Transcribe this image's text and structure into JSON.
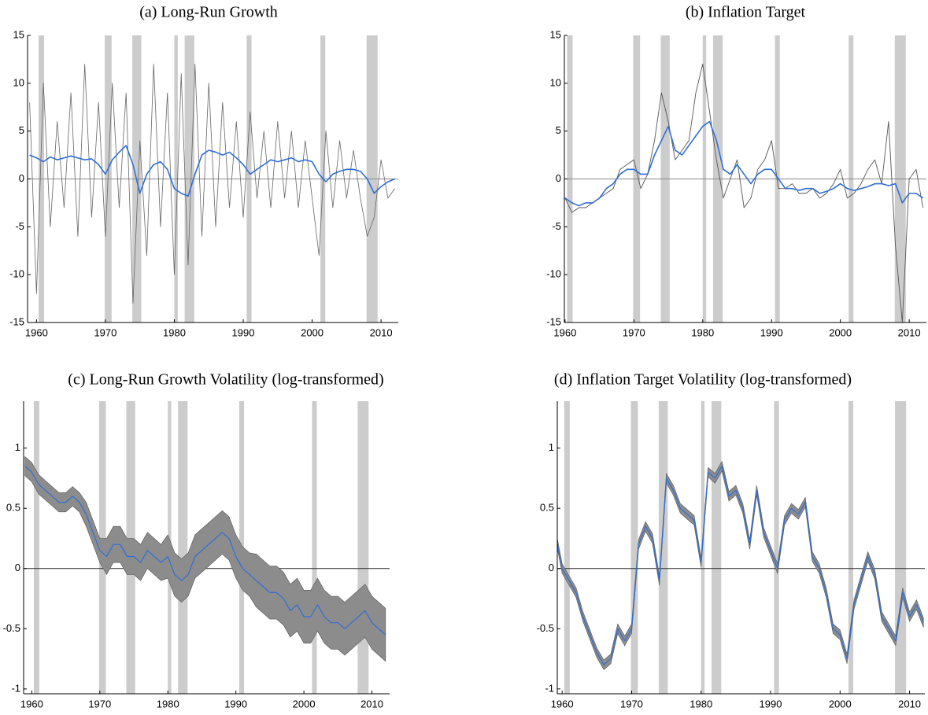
{
  "chart_data": [
    {
      "type": "line",
      "title": "(a) Long-Run Growth",
      "x": [
        1959,
        1960,
        1961,
        1962,
        1963,
        1964,
        1965,
        1966,
        1967,
        1968,
        1969,
        1970,
        1971,
        1972,
        1973,
        1974,
        1975,
        1976,
        1977,
        1978,
        1979,
        1980,
        1981,
        1982,
        1983,
        1984,
        1985,
        1986,
        1987,
        1988,
        1989,
        1990,
        1991,
        1992,
        1993,
        1994,
        1995,
        1996,
        1997,
        1998,
        1999,
        2000,
        2001,
        2002,
        2003,
        2004,
        2005,
        2006,
        2007,
        2008,
        2009,
        2010,
        2011,
        2012
      ],
      "xlim": [
        1958.7,
        2012.5
      ],
      "ylim": [
        -15,
        15
      ],
      "xticks": [
        1960,
        1970,
        1980,
        1990,
        2000,
        2010
      ],
      "yticks": [
        -15,
        -10,
        -5,
        0,
        5,
        10,
        15
      ],
      "recessions": [
        {
          "start": 1960.3,
          "end": 1961.1
        },
        {
          "start": 1969.9,
          "end": 1970.9
        },
        {
          "start": 1973.9,
          "end": 1975.2
        },
        {
          "start": 1980.0,
          "end": 1980.5
        },
        {
          "start": 1981.5,
          "end": 1982.9
        },
        {
          "start": 1990.5,
          "end": 1991.2
        },
        {
          "start": 2001.2,
          "end": 2001.9
        },
        {
          "start": 2007.9,
          "end": 2009.5
        }
      ],
      "recession_color": "#cccccc",
      "series": [
        {
          "color": "#666666",
          "width": 0.8,
          "values": [
            8,
            -12,
            10,
            -5,
            6,
            -3,
            9,
            -6,
            12,
            -4,
            8,
            -6,
            10,
            -3,
            9,
            -13,
            4,
            -8,
            12,
            -5,
            9,
            -10,
            11,
            -9,
            12,
            -6,
            10,
            -5,
            8,
            -3,
            6,
            -4,
            7,
            -2,
            5,
            -3,
            6,
            -2,
            5,
            -3,
            4,
            -2,
            -8,
            5,
            -3,
            4,
            -2,
            3,
            -2,
            -6,
            -4,
            2,
            -2,
            -1
          ]
        },
        {
          "color": "#2f6fd6",
          "width": 1.6,
          "values": [
            2.5,
            2.2,
            1.8,
            2.3,
            2,
            2.2,
            2.4,
            2.2,
            2,
            2.1,
            1.5,
            0.5,
            2.0,
            2.8,
            3.5,
            1.5,
            -1.5,
            0.5,
            1.5,
            1.8,
            1.0,
            -1.0,
            -1.5,
            -1.8,
            0.5,
            2.5,
            3.0,
            2.8,
            2.5,
            2.8,
            2.2,
            1.5,
            0.5,
            1.0,
            1.5,
            2.0,
            1.8,
            2.0,
            2.2,
            1.8,
            2.0,
            1.8,
            0.5,
            -0.3,
            0.5,
            0.8,
            1.0,
            1.0,
            0.8,
            0,
            -1.5,
            -0.8,
            -0.3,
            0
          ]
        }
      ]
    },
    {
      "type": "line",
      "title": "(b) Inflation Target",
      "x": [
        1959,
        1960,
        1961,
        1962,
        1963,
        1964,
        1965,
        1966,
        1967,
        1968,
        1969,
        1970,
        1971,
        1972,
        1973,
        1974,
        1975,
        1976,
        1977,
        1978,
        1979,
        1980,
        1981,
        1982,
        1983,
        1984,
        1985,
        1986,
        1987,
        1988,
        1989,
        1990,
        1991,
        1992,
        1993,
        1994,
        1995,
        1996,
        1997,
        1998,
        1999,
        2000,
        2001,
        2002,
        2003,
        2004,
        2005,
        2006,
        2007,
        2008,
        2009,
        2010,
        2011,
        2012
      ],
      "xlim": [
        1959.9,
        2012.5
      ],
      "ylim": [
        -15,
        15
      ],
      "xticks": [
        1960,
        1970,
        1980,
        1990,
        2000,
        2010
      ],
      "yticks": [
        -15,
        -10,
        -5,
        0,
        5,
        10,
        15
      ],
      "recessions": [
        {
          "start": 1960.3,
          "end": 1961.1
        },
        {
          "start": 1969.9,
          "end": 1970.9
        },
        {
          "start": 1973.9,
          "end": 1975.2
        },
        {
          "start": 1980.0,
          "end": 1980.5
        },
        {
          "start": 1981.5,
          "end": 1982.9
        },
        {
          "start": 1990.5,
          "end": 1991.2
        },
        {
          "start": 2001.2,
          "end": 2001.9
        },
        {
          "start": 2007.9,
          "end": 2009.5
        }
      ],
      "recession_color": "#cccccc",
      "series": [
        {
          "color": "#555555",
          "width": 0.9,
          "values": [
            -3.5,
            -2,
            -3.5,
            -3,
            -3,
            -2.5,
            -2,
            -1.5,
            -1,
            1,
            1.5,
            2,
            -1,
            0.5,
            4,
            9,
            6,
            2,
            3,
            4,
            9,
            12,
            7,
            2,
            -2,
            0,
            2,
            -3,
            -2,
            1,
            2,
            4,
            -1,
            -1,
            -0.5,
            -1.5,
            -1.5,
            -1,
            -2,
            -1.5,
            -0.5,
            1,
            -2,
            -1.5,
            -0.5,
            1,
            2,
            -0.5,
            6,
            -7,
            -15,
            0,
            1,
            -3
          ]
        },
        {
          "color": "#2f6fd6",
          "width": 1.6,
          "values": [
            -3,
            -2,
            -2.5,
            -2.8,
            -2.5,
            -2.5,
            -2,
            -1,
            -0.5,
            0.5,
            1.0,
            1.0,
            0.5,
            0.5,
            2.5,
            4,
            5.5,
            3,
            2.5,
            3.5,
            4.5,
            5.5,
            6,
            4,
            1,
            0.5,
            1.5,
            0.5,
            -0.5,
            0.5,
            1,
            1,
            0,
            -1,
            -1,
            -1.2,
            -1,
            -1,
            -1.5,
            -1.3,
            -1,
            -0.5,
            -1,
            -1.2,
            -1,
            -0.8,
            -0.5,
            -0.5,
            -0.7,
            -0.5,
            -2.5,
            -1.5,
            -1.5,
            -2
          ]
        }
      ]
    },
    {
      "type": "line",
      "title": "(c) Long-Run Growth Volatility (log-transformed)",
      "x": [
        1959,
        1960,
        1961,
        1962,
        1963,
        1964,
        1965,
        1966,
        1967,
        1968,
        1969,
        1970,
        1971,
        1972,
        1973,
        1974,
        1975,
        1976,
        1977,
        1978,
        1979,
        1980,
        1981,
        1982,
        1983,
        1984,
        1985,
        1986,
        1987,
        1988,
        1989,
        1990,
        1991,
        1992,
        1993,
        1994,
        1995,
        1996,
        1997,
        1998,
        1999,
        2000,
        2001,
        2002,
        2003,
        2004,
        2005,
        2006,
        2007,
        2008,
        2009,
        2010,
        2011,
        2012
      ],
      "xlim": [
        1958.8,
        2012.6
      ],
      "ylim": [
        -1.04,
        1.39
      ],
      "xticks": [
        1960,
        1970,
        1980,
        1990,
        2000,
        2010
      ],
      "yticks": [
        -1,
        -0.5,
        0,
        0.5,
        1
      ],
      "recessions": [
        {
          "start": 1960.3,
          "end": 1961.1
        },
        {
          "start": 1969.9,
          "end": 1970.9
        },
        {
          "start": 1973.9,
          "end": 1975.2
        },
        {
          "start": 1980.0,
          "end": 1980.5
        },
        {
          "start": 1981.5,
          "end": 1982.9
        },
        {
          "start": 1990.5,
          "end": 1991.2
        },
        {
          "start": 2001.2,
          "end": 2001.9
        },
        {
          "start": 2007.9,
          "end": 2009.5
        }
      ],
      "recession_color": "#cccccc",
      "band": {
        "color": "#8c8c8c",
        "upper": [
          0.93,
          0.88,
          0.78,
          0.73,
          0.68,
          0.63,
          0.63,
          0.68,
          0.63,
          0.55,
          0.4,
          0.25,
          0.25,
          0.35,
          0.35,
          0.25,
          0.25,
          0.2,
          0.3,
          0.25,
          0.2,
          0.28,
          0.13,
          0.08,
          0.13,
          0.28,
          0.33,
          0.38,
          0.43,
          0.48,
          0.43,
          0.28,
          0.18,
          0.13,
          0.12,
          0.07,
          0.02,
          0.02,
          -0.03,
          -0.13,
          -0.08,
          -0.18,
          -0.18,
          -0.08,
          -0.18,
          -0.23,
          -0.23,
          -0.28,
          -0.23,
          -0.18,
          -0.13,
          -0.23,
          -0.28,
          -0.33
        ],
        "lower": [
          0.77,
          0.72,
          0.62,
          0.57,
          0.52,
          0.47,
          0.47,
          0.52,
          0.47,
          0.35,
          0.2,
          0.05,
          -0.05,
          0.05,
          0.05,
          -0.05,
          -0.05,
          -0.1,
          0,
          -0.05,
          -0.1,
          -0.08,
          -0.23,
          -0.28,
          -0.23,
          -0.08,
          -0.03,
          0.02,
          0.07,
          0.12,
          0.07,
          -0.08,
          -0.18,
          -0.23,
          -0.32,
          -0.37,
          -0.42,
          -0.42,
          -0.47,
          -0.57,
          -0.52,
          -0.62,
          -0.62,
          -0.52,
          -0.62,
          -0.67,
          -0.67,
          -0.72,
          -0.67,
          -0.62,
          -0.57,
          -0.67,
          -0.72,
          -0.77
        ]
      },
      "series": [
        {
          "color": "#2f6fd6",
          "width": 1.2,
          "values": [
            0.85,
            0.8,
            0.7,
            0.65,
            0.6,
            0.55,
            0.55,
            0.6,
            0.55,
            0.45,
            0.3,
            0.15,
            0.1,
            0.2,
            0.2,
            0.1,
            0.1,
            0.05,
            0.15,
            0.1,
            0.05,
            0.1,
            -0.05,
            -0.1,
            -0.05,
            0.1,
            0.15,
            0.2,
            0.25,
            0.3,
            0.25,
            0.1,
            0.0,
            -0.05,
            -0.1,
            -0.15,
            -0.2,
            -0.2,
            -0.25,
            -0.35,
            -0.3,
            -0.4,
            -0.4,
            -0.3,
            -0.4,
            -0.45,
            -0.45,
            -0.5,
            -0.45,
            -0.4,
            -0.35,
            -0.45,
            -0.5,
            -0.55
          ]
        }
      ]
    },
    {
      "type": "line",
      "title": "(d) Inflation Target Volatility (log-transformed)",
      "x": [
        1959,
        1960,
        1961,
        1962,
        1963,
        1964,
        1965,
        1966,
        1967,
        1968,
        1969,
        1970,
        1971,
        1972,
        1973,
        1974,
        1975,
        1976,
        1977,
        1978,
        1979,
        1980,
        1981,
        1982,
        1983,
        1984,
        1985,
        1986,
        1987,
        1988,
        1989,
        1990,
        1991,
        1992,
        1993,
        1994,
        1995,
        1996,
        1997,
        1998,
        1999,
        2000,
        2001,
        2002,
        2003,
        2004,
        2005,
        2006,
        2007,
        2008,
        2009,
        2010,
        2011,
        2012
      ],
      "xlim": [
        1959.3,
        2012.2
      ],
      "ylim": [
        -1.04,
        1.39
      ],
      "xticks": [
        1960,
        1970,
        1980,
        1990,
        2000,
        2010
      ],
      "yticks": [
        -1,
        -0.5,
        0,
        0.5,
        1
      ],
      "recessions": [
        {
          "start": 1960.3,
          "end": 1961.1
        },
        {
          "start": 1969.9,
          "end": 1970.9
        },
        {
          "start": 1973.9,
          "end": 1975.2
        },
        {
          "start": 1980.0,
          "end": 1980.5
        },
        {
          "start": 1981.5,
          "end": 1982.9
        },
        {
          "start": 1990.5,
          "end": 1991.2
        },
        {
          "start": 2001.2,
          "end": 2001.9
        },
        {
          "start": 2007.9,
          "end": 2009.5
        }
      ],
      "recession_color": "#cccccc",
      "band": {
        "color": "#8c8c8c",
        "upper": [
          0.34,
          0.04,
          -0.06,
          -0.16,
          -0.36,
          -0.51,
          -0.66,
          -0.76,
          -0.71,
          -0.46,
          -0.56,
          -0.46,
          0.24,
          0.39,
          0.29,
          -0.06,
          0.79,
          0.69,
          0.54,
          0.49,
          0.44,
          0.09,
          0.84,
          0.79,
          0.89,
          0.64,
          0.69,
          0.54,
          0.24,
          0.69,
          0.34,
          0.19,
          0.04,
          0.44,
          0.54,
          0.49,
          0.59,
          0.14,
          0.04,
          -0.16,
          -0.46,
          -0.51,
          -0.71,
          -0.26,
          -0.06,
          0.14,
          -0.01,
          -0.36,
          -0.46,
          -0.56,
          -0.16,
          -0.36,
          -0.26,
          -0.41
        ],
        "lower": [
          0.26,
          -0.04,
          -0.14,
          -0.24,
          -0.44,
          -0.59,
          -0.74,
          -0.84,
          -0.79,
          -0.54,
          -0.64,
          -0.54,
          0.16,
          0.31,
          0.21,
          -0.14,
          0.71,
          0.61,
          0.46,
          0.41,
          0.36,
          0.01,
          0.76,
          0.71,
          0.81,
          0.56,
          0.61,
          0.46,
          0.16,
          0.61,
          0.26,
          0.11,
          -0.04,
          0.36,
          0.46,
          0.41,
          0.51,
          0.06,
          -0.04,
          -0.24,
          -0.54,
          -0.59,
          -0.79,
          -0.34,
          -0.14,
          0.06,
          -0.09,
          -0.44,
          -0.54,
          -0.64,
          -0.24,
          -0.44,
          -0.34,
          -0.49
        ]
      },
      "series": [
        {
          "color": "#2f6fd6",
          "width": 1.2,
          "values": [
            0.3,
            0.0,
            -0.1,
            -0.2,
            -0.4,
            -0.55,
            -0.7,
            -0.8,
            -0.75,
            -0.5,
            -0.6,
            -0.5,
            0.2,
            0.35,
            0.25,
            -0.1,
            0.75,
            0.65,
            0.5,
            0.45,
            0.4,
            0.05,
            0.8,
            0.75,
            0.85,
            0.6,
            0.65,
            0.5,
            0.2,
            0.65,
            0.3,
            0.15,
            0.0,
            0.4,
            0.5,
            0.45,
            0.55,
            0.1,
            0.0,
            -0.2,
            -0.5,
            -0.55,
            -0.75,
            -0.3,
            -0.1,
            0.1,
            -0.05,
            -0.4,
            -0.5,
            -0.6,
            -0.2,
            -0.4,
            -0.3,
            -0.45
          ]
        }
      ]
    }
  ]
}
